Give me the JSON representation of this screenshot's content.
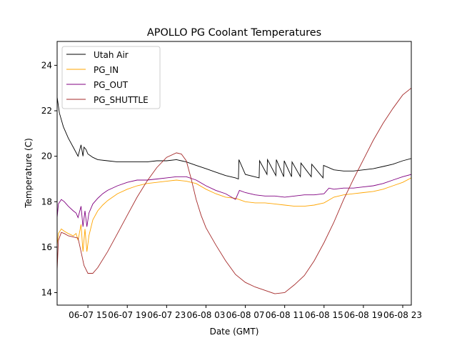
{
  "chart_data": {
    "type": "line",
    "title": "APOLLO PG Coolant Temperatures",
    "xlabel": "Date (GMT)",
    "ylabel": "Temperature (C)",
    "x_units": "hours since 06-07 00:00 GMT",
    "xlim": [
      11.87,
      47.87
    ],
    "ylim": [
      13.45,
      25.05
    ],
    "x_ticks": [
      {
        "value": 15,
        "label": "06-07 15"
      },
      {
        "value": 19,
        "label": "06-07 19"
      },
      {
        "value": 23,
        "label": "06-07 23"
      },
      {
        "value": 27,
        "label": "06-08 03"
      },
      {
        "value": 31,
        "label": "06-08 07"
      },
      {
        "value": 35,
        "label": "06-08 11"
      },
      {
        "value": 39,
        "label": "06-08 15"
      },
      {
        "value": 43,
        "label": "06-08 19"
      },
      {
        "value": 47,
        "label": "06-08 23"
      }
    ],
    "y_ticks": [
      {
        "value": 14,
        "label": "14"
      },
      {
        "value": 16,
        "label": "16"
      },
      {
        "value": 18,
        "label": "18"
      },
      {
        "value": 20,
        "label": "20"
      },
      {
        "value": 22,
        "label": "22"
      },
      {
        "value": 24,
        "label": "24"
      }
    ],
    "grid": false,
    "legend_position": "top-left",
    "series": [
      {
        "name": "Utah Air",
        "color": "#000000",
        "x": [
          11.87,
          12.1,
          12.5,
          13.0,
          13.5,
          14.0,
          14.3,
          14.5,
          14.6,
          14.8,
          15.0,
          15.5,
          16.0,
          17.0,
          18.0,
          19.0,
          20.0,
          21.0,
          22.0,
          23.0,
          24.0,
          25.0,
          26.0,
          27.0,
          28.0,
          29.0,
          30.0,
          30.3,
          30.35,
          30.9,
          31.0,
          32.4,
          32.45,
          33.2,
          33.25,
          34.1,
          34.15,
          34.9,
          34.95,
          35.7,
          35.75,
          36.6,
          36.65,
          37.7,
          37.75,
          38.9,
          38.95,
          40.0,
          41.0,
          42.0,
          43.0,
          44.0,
          45.0,
          46.0,
          47.0,
          47.87
        ],
        "y": [
          22.6,
          21.9,
          21.3,
          20.8,
          20.4,
          20.0,
          20.5,
          20.0,
          20.4,
          20.3,
          20.1,
          19.95,
          19.85,
          19.8,
          19.75,
          19.75,
          19.75,
          19.75,
          19.8,
          19.8,
          19.85,
          19.75,
          19.6,
          19.45,
          19.3,
          19.15,
          19.05,
          19.0,
          19.85,
          19.3,
          19.2,
          19.05,
          19.8,
          19.2,
          19.85,
          19.15,
          19.85,
          19.1,
          19.8,
          19.1,
          19.75,
          19.1,
          19.7,
          19.1,
          19.65,
          19.05,
          19.6,
          19.4,
          19.35,
          19.35,
          19.4,
          19.45,
          19.55,
          19.65,
          19.8,
          19.9
        ]
      },
      {
        "name": "PG_IN",
        "color": "#ffa500",
        "x": [
          11.87,
          12.0,
          12.3,
          12.6,
          13.0,
          13.5,
          13.8,
          14.0,
          14.3,
          14.5,
          14.7,
          14.9,
          15.1,
          15.5,
          16.0,
          16.5,
          17.0,
          18.0,
          19.0,
          20.0,
          21.0,
          22.0,
          23.0,
          24.0,
          25.0,
          26.0,
          27.0,
          28.0,
          29.0,
          30.0,
          31.0,
          32.0,
          33.0,
          34.0,
          35.0,
          36.0,
          37.0,
          38.0,
          39.0,
          40.0,
          41.0,
          42.0,
          43.0,
          44.0,
          45.0,
          46.0,
          47.0,
          47.87
        ],
        "y": [
          16.1,
          16.6,
          16.8,
          16.7,
          16.6,
          16.5,
          16.6,
          16.3,
          17.0,
          15.8,
          16.8,
          15.8,
          16.5,
          17.2,
          17.6,
          17.85,
          18.05,
          18.35,
          18.55,
          18.7,
          18.8,
          18.85,
          18.9,
          18.95,
          18.9,
          18.8,
          18.55,
          18.35,
          18.2,
          18.15,
          18.0,
          17.95,
          17.95,
          17.9,
          17.85,
          17.8,
          17.8,
          17.85,
          17.95,
          18.2,
          18.3,
          18.35,
          18.4,
          18.45,
          18.55,
          18.7,
          18.85,
          19.05
        ]
      },
      {
        "name": "PG_OUT",
        "color": "#800080",
        "x": [
          11.87,
          12.0,
          12.3,
          12.6,
          13.0,
          13.5,
          13.8,
          14.0,
          14.3,
          14.5,
          14.7,
          14.9,
          15.1,
          15.5,
          16.0,
          16.5,
          17.0,
          18.0,
          19.0,
          20.0,
          21.0,
          22.0,
          23.0,
          24.0,
          25.0,
          26.0,
          27.0,
          28.0,
          29.0,
          30.0,
          30.4,
          31.0,
          32.0,
          33.0,
          34.0,
          35.0,
          36.0,
          37.0,
          38.0,
          39.0,
          39.5,
          40.0,
          41.0,
          42.0,
          43.0,
          44.0,
          45.0,
          46.0,
          47.0,
          47.87
        ],
        "y": [
          17.3,
          17.9,
          18.1,
          18.0,
          17.8,
          17.6,
          17.5,
          17.3,
          17.8,
          16.9,
          17.6,
          16.9,
          17.5,
          17.9,
          18.15,
          18.35,
          18.5,
          18.7,
          18.85,
          18.95,
          18.95,
          19.0,
          19.05,
          19.1,
          19.1,
          18.95,
          18.7,
          18.5,
          18.35,
          18.1,
          18.5,
          18.4,
          18.3,
          18.25,
          18.25,
          18.2,
          18.25,
          18.3,
          18.3,
          18.35,
          18.6,
          18.55,
          18.6,
          18.6,
          18.65,
          18.7,
          18.8,
          18.95,
          19.1,
          19.2
        ]
      },
      {
        "name": "PG_SHUTTLE",
        "color": "#a52a2a",
        "x": [
          11.87,
          12.0,
          12.3,
          12.6,
          13.0,
          13.5,
          14.0,
          14.3,
          14.6,
          15.0,
          15.5,
          16.0,
          17.0,
          18.0,
          19.0,
          20.0,
          21.0,
          22.0,
          23.0,
          24.0,
          24.5,
          25.0,
          25.5,
          26.0,
          26.5,
          27.0,
          28.0,
          29.0,
          30.0,
          31.0,
          32.0,
          33.0,
          34.0,
          35.0,
          36.0,
          37.0,
          38.0,
          39.0,
          40.0,
          41.0,
          42.0,
          43.0,
          44.0,
          45.0,
          46.0,
          47.0,
          47.87
        ],
        "y": [
          15.0,
          16.3,
          16.65,
          16.6,
          16.5,
          16.45,
          16.4,
          15.8,
          15.2,
          14.85,
          14.85,
          15.1,
          15.8,
          16.6,
          17.4,
          18.2,
          18.9,
          19.5,
          19.95,
          20.15,
          20.1,
          19.8,
          19.0,
          18.1,
          17.4,
          16.85,
          16.1,
          15.4,
          14.8,
          14.45,
          14.25,
          14.1,
          13.95,
          14.0,
          14.35,
          14.75,
          15.4,
          16.2,
          17.1,
          18.1,
          19.0,
          19.85,
          20.7,
          21.45,
          22.1,
          22.7,
          23.0
        ]
      }
    ]
  }
}
